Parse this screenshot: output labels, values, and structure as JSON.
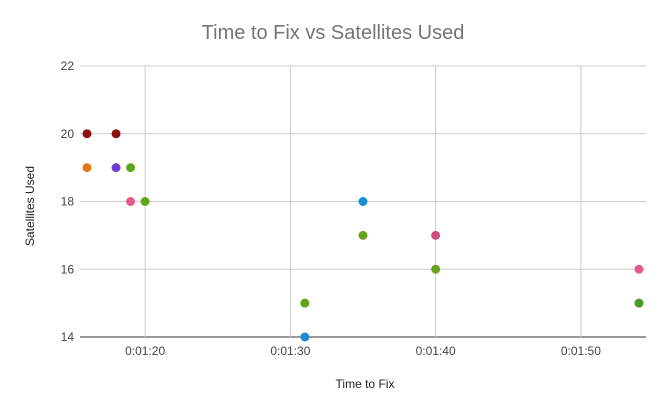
{
  "chart_data": {
    "type": "scatter",
    "title": "Time to Fix vs Satellites Used",
    "xlabel": "Time to Fix",
    "ylabel": "Satellites Used",
    "x_format": "h:mm:ss",
    "xlim": [
      "0:01:16",
      "0:01:54"
    ],
    "ylim": [
      14,
      22
    ],
    "x_ticks": [
      "0:01:20",
      "0:01:30",
      "0:01:40",
      "0:01:50"
    ],
    "x_tick_labels": [
      "0:01:20",
      "0:01:30",
      "0:01:40",
      "0:01:50"
    ],
    "y_ticks": [
      14,
      16,
      18,
      20,
      22
    ],
    "y_tick_labels": [
      "14",
      "16",
      "18",
      "20",
      "22"
    ],
    "grid": true,
    "legend": "none",
    "points": [
      {
        "x": "0:01:16",
        "y": 20,
        "color": "#8b1010"
      },
      {
        "x": "0:01:16",
        "y": 19,
        "color": "#e07a10"
      },
      {
        "x": "0:01:18",
        "y": 20,
        "color": "#8b1010"
      },
      {
        "x": "0:01:18",
        "y": 19,
        "color": "#6a3fd0"
      },
      {
        "x": "0:01:19",
        "y": 19,
        "color": "#5ea61a"
      },
      {
        "x": "0:01:19",
        "y": 18,
        "color": "#e25a8e"
      },
      {
        "x": "0:01:20",
        "y": 18,
        "color": "#5ea61a"
      },
      {
        "x": "0:01:31",
        "y": 15,
        "color": "#6aa11a"
      },
      {
        "x": "0:01:31",
        "y": 14,
        "color": "#1a8fd0"
      },
      {
        "x": "0:01:35",
        "y": 18,
        "color": "#1a8fd0"
      },
      {
        "x": "0:01:35",
        "y": 17,
        "color": "#6aa11a"
      },
      {
        "x": "0:01:40",
        "y": 17,
        "color": "#d14b7c"
      },
      {
        "x": "0:01:40",
        "y": 16,
        "color": "#6aa11a"
      },
      {
        "x": "0:01:54",
        "y": 16,
        "color": "#e25a8e"
      },
      {
        "x": "0:01:54",
        "y": 15,
        "color": "#4a9a2a"
      }
    ]
  }
}
